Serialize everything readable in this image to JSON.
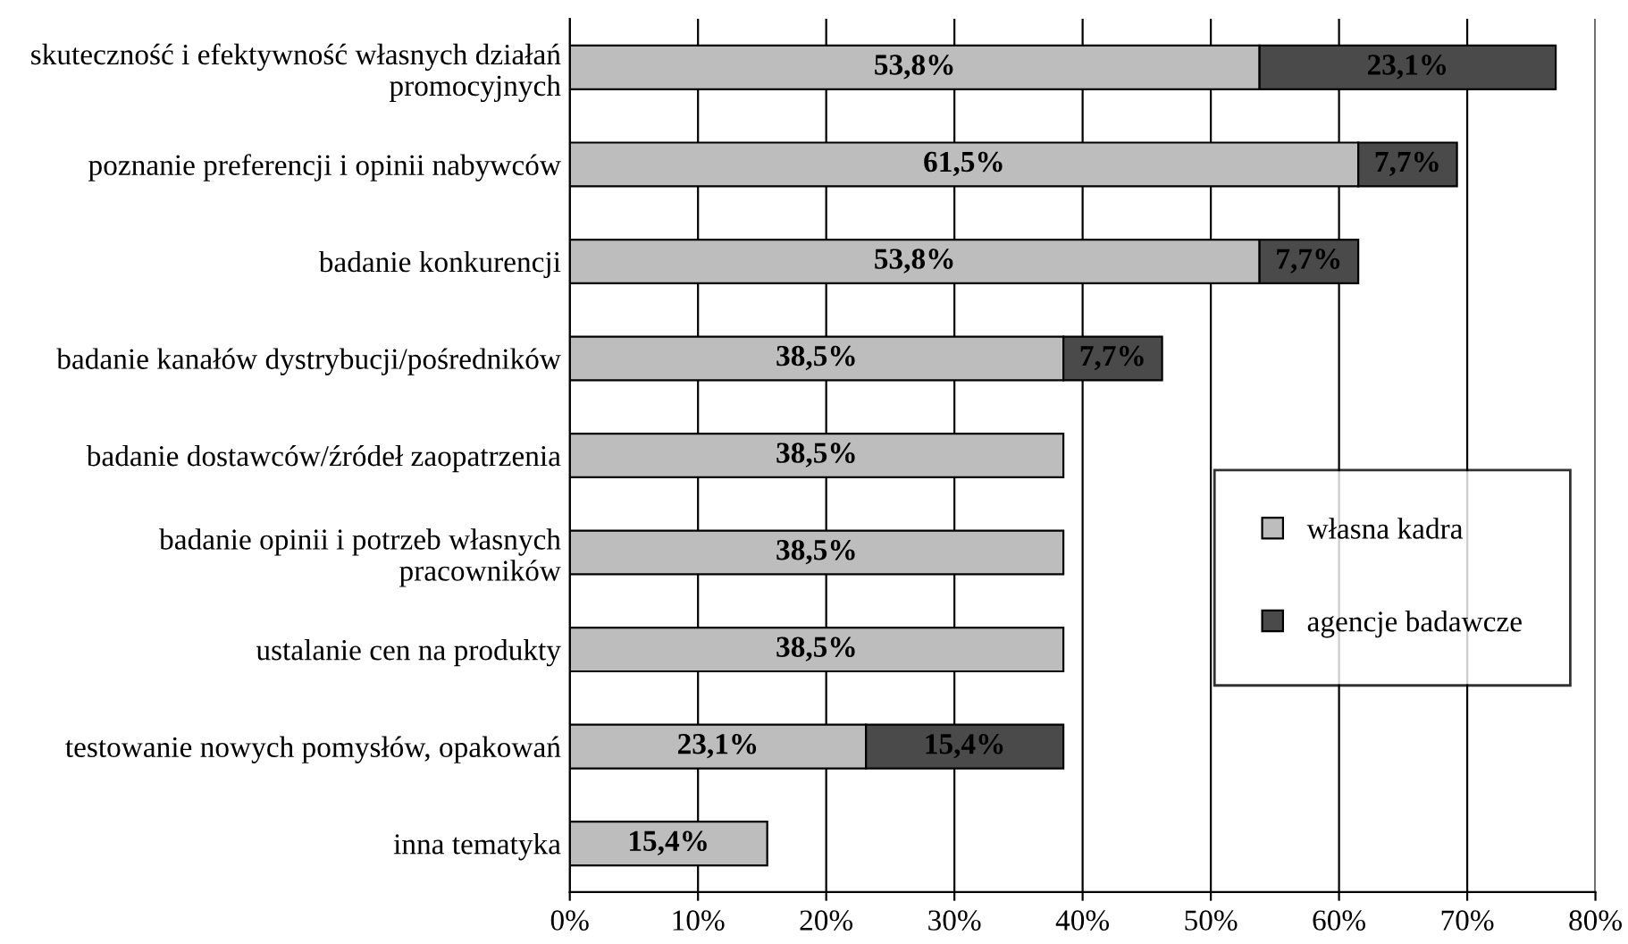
{
  "chart_data": {
    "type": "bar",
    "orientation": "horizontal",
    "stacked": true,
    "categories": [
      "skuteczność i efektywność własnych działań promocyjnych",
      "poznanie preferencji i opinii nabywców",
      "badanie konkurencji",
      "badanie kanałów dystrybucji/pośredników",
      "badanie dostawców/źródeł zaopatrzenia",
      "badanie opinii i potrzeb własnych pracowników",
      "ustalanie cen na produkty",
      "testowanie nowych pomysłów, opakowań",
      "inna tematyka"
    ],
    "series": [
      {
        "name": "własna kadra",
        "color": "#bdbdbd",
        "values": [
          53.8,
          61.5,
          53.8,
          38.5,
          38.5,
          38.5,
          38.5,
          23.1,
          15.4
        ],
        "value_labels": [
          "53,8%",
          "61,5%",
          "53,8%",
          "38,5%",
          "38,5%",
          "38,5%",
          "38,5%",
          "23,1%",
          "15,4%"
        ]
      },
      {
        "name": "agencje badawcze",
        "color": "#4a4a4a",
        "values": [
          23.1,
          7.7,
          7.7,
          7.7,
          null,
          null,
          null,
          15.4,
          null
        ],
        "value_labels": [
          "23,1%",
          "7,7%",
          "7,7%",
          "7,7%",
          null,
          null,
          null,
          "15,4%",
          null
        ]
      }
    ],
    "xlim": [
      0,
      80
    ],
    "xticks": [
      {
        "value": 0,
        "label": "0%"
      },
      {
        "value": 10,
        "label": "10%"
      },
      {
        "value": 20,
        "label": "20%"
      },
      {
        "value": 30,
        "label": "30%"
      },
      {
        "value": 40,
        "label": "40%"
      },
      {
        "value": 50,
        "label": "50%"
      },
      {
        "value": 60,
        "label": "60%"
      },
      {
        "value": 70,
        "label": "70%"
      },
      {
        "value": 80,
        "label": "80%"
      }
    ],
    "grid": "x",
    "legend": "right"
  }
}
